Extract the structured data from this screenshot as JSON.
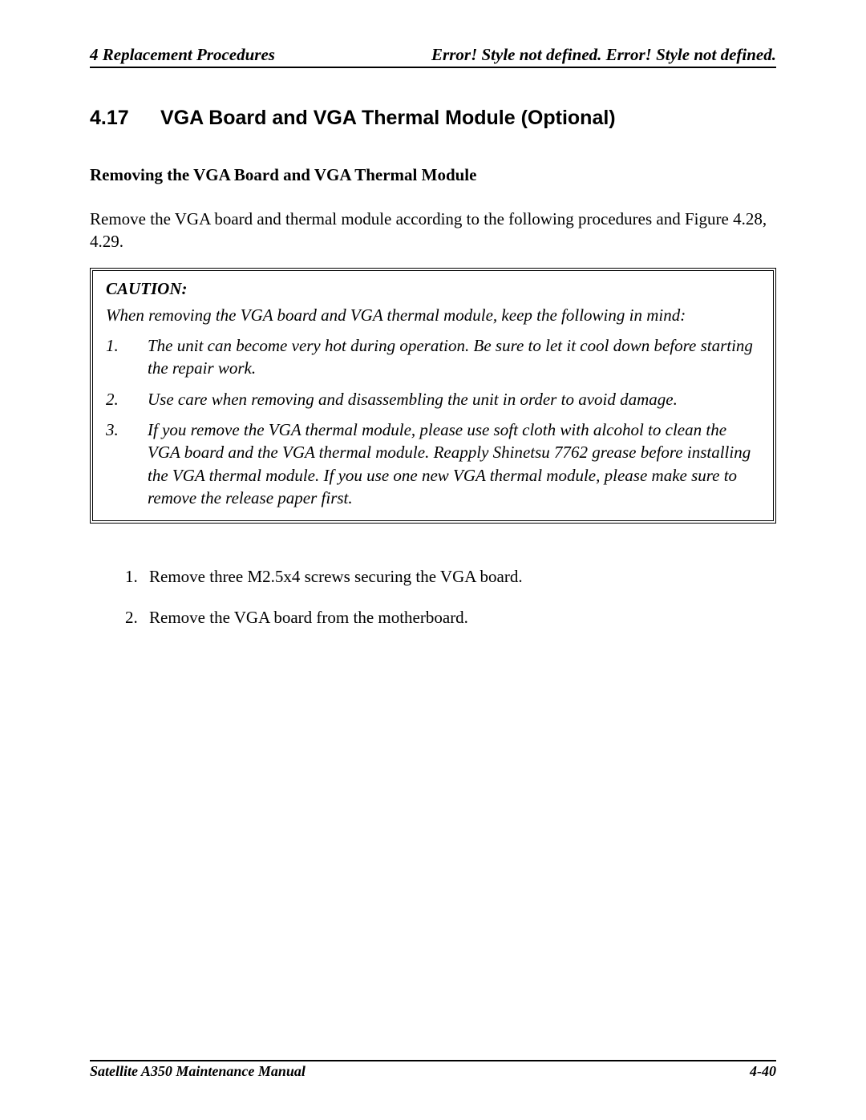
{
  "header": {
    "left": "4 Replacement Procedures",
    "right": "Error! Style not defined. Error! Style not defined."
  },
  "section": {
    "number": "4.17",
    "title": "VGA Board and VGA Thermal Module (Optional)"
  },
  "subheading": "Removing the VGA Board and VGA Thermal Module",
  "intro": "Remove the VGA board and thermal module according to the following procedures and Figure 4.28, 4.29.",
  "caution": {
    "label": "CAUTION:",
    "intro": "When removing the VGA board and VGA thermal module, keep the following in mind:",
    "items": [
      {
        "n": "1.",
        "text": "The unit can become very hot during operation. Be sure to let it cool down before starting the repair work."
      },
      {
        "n": "2.",
        "text": "Use care when removing and disassembling the unit in order to avoid damage."
      },
      {
        "n": "3.",
        "text": "If you remove the VGA thermal module, please use soft cloth with alcohol to clean the VGA board and the VGA thermal module. Reapply Shinetsu 7762 grease before installing the VGA thermal module. If you use one new VGA thermal module, please make sure to remove the release paper first."
      }
    ]
  },
  "steps": [
    {
      "n": "1.",
      "text": "Remove three M2.5x4 screws securing the VGA board."
    },
    {
      "n": "2.",
      "text": "Remove the VGA board from the motherboard."
    }
  ],
  "footer": {
    "left": "Satellite A350 Maintenance Manual",
    "right": "4-40"
  }
}
